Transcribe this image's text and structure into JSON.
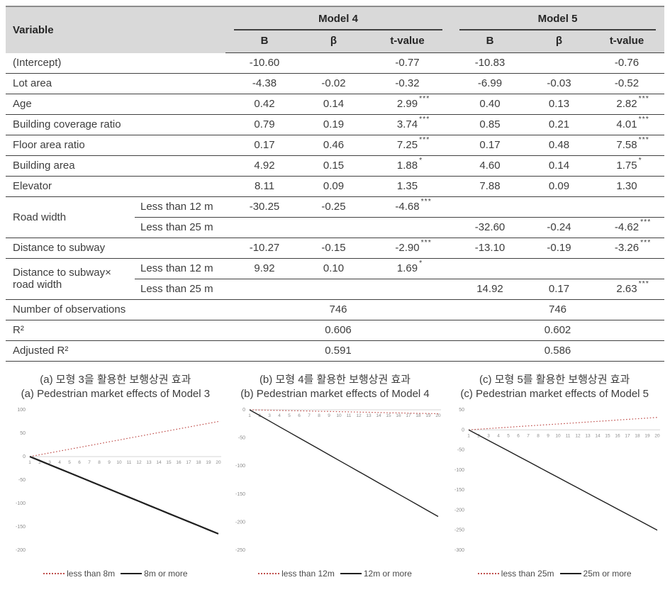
{
  "table": {
    "header": {
      "variable": "Variable",
      "groups": [
        {
          "label": "Model 4"
        },
        {
          "label": "Model 5"
        }
      ],
      "columns": [
        "B",
        "β",
        "t-value"
      ]
    },
    "rows": [
      {
        "type": "simple",
        "label": "(Intercept)",
        "cells": [
          {
            "v": "-10.60"
          },
          {
            "v": ""
          },
          {
            "v": "-0.77"
          },
          {
            "v": "-10.83"
          },
          {
            "v": ""
          },
          {
            "v": "-0.76"
          }
        ]
      },
      {
        "type": "simple",
        "label": "Lot area",
        "cells": [
          {
            "v": "-4.38"
          },
          {
            "v": "-0.02"
          },
          {
            "v": "-0.32"
          },
          {
            "v": "-6.99"
          },
          {
            "v": "-0.03"
          },
          {
            "v": "-0.52"
          }
        ]
      },
      {
        "type": "simple",
        "label": "Age",
        "cells": [
          {
            "v": "0.42"
          },
          {
            "v": "0.14"
          },
          {
            "v": "2.99",
            "s": "***"
          },
          {
            "v": "0.40"
          },
          {
            "v": "0.13"
          },
          {
            "v": "2.82",
            "s": "***"
          }
        ]
      },
      {
        "type": "simple",
        "label": "Building coverage ratio",
        "cells": [
          {
            "v": "0.79"
          },
          {
            "v": "0.19"
          },
          {
            "v": "3.74",
            "s": "***"
          },
          {
            "v": "0.85"
          },
          {
            "v": "0.21"
          },
          {
            "v": "4.01",
            "s": "***"
          }
        ]
      },
      {
        "type": "simple",
        "label": "Floor area ratio",
        "cells": [
          {
            "v": "0.17"
          },
          {
            "v": "0.46"
          },
          {
            "v": "7.25",
            "s": "***"
          },
          {
            "v": "0.17"
          },
          {
            "v": "0.48"
          },
          {
            "v": "7.58",
            "s": "***"
          }
        ]
      },
      {
        "type": "simple",
        "label": "Building area",
        "cells": [
          {
            "v": "4.92"
          },
          {
            "v": "0.15"
          },
          {
            "v": "1.88",
            "s": "*"
          },
          {
            "v": "4.60"
          },
          {
            "v": "0.14"
          },
          {
            "v": "1.75",
            "s": "*"
          }
        ]
      },
      {
        "type": "simple",
        "label": "Elevator",
        "cells": [
          {
            "v": "8.11"
          },
          {
            "v": "0.09"
          },
          {
            "v": "1.35"
          },
          {
            "v": "7.88"
          },
          {
            "v": "0.09"
          },
          {
            "v": "1.30"
          }
        ]
      },
      {
        "type": "group",
        "label": "Road width",
        "subrows": [
          {
            "sublabel": "Less than 12 m",
            "cells": [
              {
                "v": "-30.25"
              },
              {
                "v": "-0.25"
              },
              {
                "v": "-4.68",
                "s": "***"
              },
              {
                "v": ""
              },
              {
                "v": ""
              },
              {
                "v": ""
              }
            ]
          },
          {
            "sublabel": "Less than 25 m",
            "cells": [
              {
                "v": ""
              },
              {
                "v": ""
              },
              {
                "v": ""
              },
              {
                "v": "-32.60"
              },
              {
                "v": "-0.24"
              },
              {
                "v": "-4.62",
                "s": "***"
              }
            ]
          }
        ]
      },
      {
        "type": "simple",
        "label": "Distance to subway",
        "cells": [
          {
            "v": "-10.27"
          },
          {
            "v": "-0.15"
          },
          {
            "v": "-2.90",
            "s": "***"
          },
          {
            "v": "-13.10"
          },
          {
            "v": "-0.19"
          },
          {
            "v": "-3.26",
            "s": "***"
          }
        ]
      },
      {
        "type": "group",
        "label": "Distance to subway×\nroad width",
        "subrows": [
          {
            "sublabel": "Less than 12 m",
            "cells": [
              {
                "v": "9.92"
              },
              {
                "v": "0.10"
              },
              {
                "v": "1.69",
                "s": "*"
              },
              {
                "v": ""
              },
              {
                "v": ""
              },
              {
                "v": ""
              }
            ]
          },
          {
            "sublabel": "Less than 25 m",
            "cells": [
              {
                "v": ""
              },
              {
                "v": ""
              },
              {
                "v": ""
              },
              {
                "v": "14.92"
              },
              {
                "v": "0.17"
              },
              {
                "v": "2.63",
                "s": "***"
              }
            ]
          }
        ]
      },
      {
        "type": "stat",
        "label": "Number of observations",
        "values": [
          "746",
          "746"
        ]
      },
      {
        "type": "stat",
        "label": "R²",
        "values": [
          "0.606",
          "0.602"
        ]
      },
      {
        "type": "stat",
        "label": "Adjusted R²",
        "values": [
          "0.591",
          "0.586"
        ]
      }
    ]
  },
  "chart_data": [
    {
      "id": "a",
      "type": "line",
      "title_ko": "(a) 모형 3을 활용한 보행상권 효과",
      "title_en": "(a) Pedestrian market effects of Model 3",
      "x": [
        1,
        2,
        3,
        4,
        5,
        6,
        7,
        8,
        9,
        10,
        11,
        12,
        13,
        14,
        15,
        16,
        17,
        18,
        19,
        20
      ],
      "ymin": -200,
      "ymax": 100,
      "yticks": [
        100,
        50,
        0,
        -50,
        -100,
        -150,
        -200
      ],
      "grid": false,
      "legend_position": "bottom",
      "series": [
        {
          "name": "less than 8m",
          "color": "#c0504d",
          "style": "dotted",
          "stroke_width": 1.2,
          "values": [
            0,
            3.9,
            7.9,
            11.8,
            15.8,
            19.7,
            23.7,
            27.6,
            31.6,
            35.5,
            39.5,
            43.4,
            47.4,
            51.3,
            55.3,
            59.2,
            63.2,
            67.1,
            71.1,
            75
          ]
        },
        {
          "name": "8m or more",
          "color": "#1f1f1f",
          "style": "solid",
          "stroke_width": 2.2,
          "values": [
            0,
            -8.7,
            -17.4,
            -26.1,
            -34.7,
            -43.4,
            -52.1,
            -60.8,
            -69.5,
            -78.2,
            -86.8,
            -95.5,
            -104.2,
            -112.9,
            -121.6,
            -130.3,
            -139,
            -147.6,
            -156.3,
            -165
          ]
        }
      ]
    },
    {
      "id": "b",
      "type": "line",
      "title_ko": "(b) 모형 4를 활용한 보행상권 효과",
      "title_en": "(b) Pedestrian market effects of Model 4",
      "x": [
        1,
        2,
        3,
        4,
        5,
        6,
        7,
        8,
        9,
        10,
        11,
        12,
        13,
        14,
        15,
        16,
        17,
        18,
        19,
        20
      ],
      "ymin": -250,
      "ymax": 0,
      "yticks": [
        0,
        -50,
        -100,
        -150,
        -200,
        -250
      ],
      "grid": false,
      "legend_position": "bottom",
      "series": [
        {
          "name": "less than 12m",
          "color": "#c0504d",
          "style": "dotted",
          "stroke_width": 1.2,
          "values": [
            0,
            -0.4,
            -0.7,
            -1.1,
            -1.5,
            -1.8,
            -2.2,
            -2.6,
            -2.9,
            -3.3,
            -3.7,
            -4.1,
            -4.4,
            -4.8,
            -5.2,
            -5.5,
            -5.9,
            -6.3,
            -6.6,
            -7
          ]
        },
        {
          "name": "12m or more",
          "color": "#1f1f1f",
          "style": "solid",
          "stroke_width": 1.4,
          "values": [
            0,
            -10,
            -20,
            -30,
            -40,
            -50,
            -60,
            -70,
            -80,
            -90,
            -100,
            -110,
            -120,
            -130,
            -140,
            -150,
            -160,
            -170,
            -180,
            -190
          ]
        }
      ]
    },
    {
      "id": "c",
      "type": "line",
      "title_ko": "(c) 모형 5를 활용한 보행상권 효과",
      "title_en": "(c) Pedestrian market effects of Model 5",
      "x": [
        1,
        2,
        3,
        4,
        5,
        6,
        7,
        8,
        9,
        10,
        11,
        12,
        13,
        14,
        15,
        16,
        17,
        18,
        19,
        20
      ],
      "ymin": -300,
      "ymax": 50,
      "yticks": [
        50,
        0,
        -50,
        -100,
        -150,
        -200,
        -250,
        -300
      ],
      "grid": false,
      "legend_position": "bottom",
      "series": [
        {
          "name": "less than 25m",
          "color": "#c0504d",
          "style": "dotted",
          "stroke_width": 1.2,
          "values": [
            0,
            1.6,
            3.3,
            4.9,
            6.5,
            8.2,
            9.8,
            11.4,
            13.1,
            14.7,
            16.3,
            17.9,
            19.6,
            21.2,
            22.8,
            24.5,
            26.1,
            27.7,
            29.4,
            31
          ]
        },
        {
          "name": "25m or more",
          "color": "#1f1f1f",
          "style": "solid",
          "stroke_width": 1.4,
          "values": [
            0,
            -13.2,
            -26.3,
            -39.5,
            -52.6,
            -65.8,
            -78.9,
            -92.1,
            -105.3,
            -118.4,
            -131.6,
            -144.7,
            -157.9,
            -171.1,
            -184.2,
            -197.4,
            -210.5,
            -223.7,
            -236.8,
            -250
          ]
        }
      ]
    }
  ],
  "colors": {
    "accent_red": "#c0504d",
    "line_black": "#1f1f1f",
    "header_bg": "#d9d9d9",
    "rule": "#404040"
  }
}
